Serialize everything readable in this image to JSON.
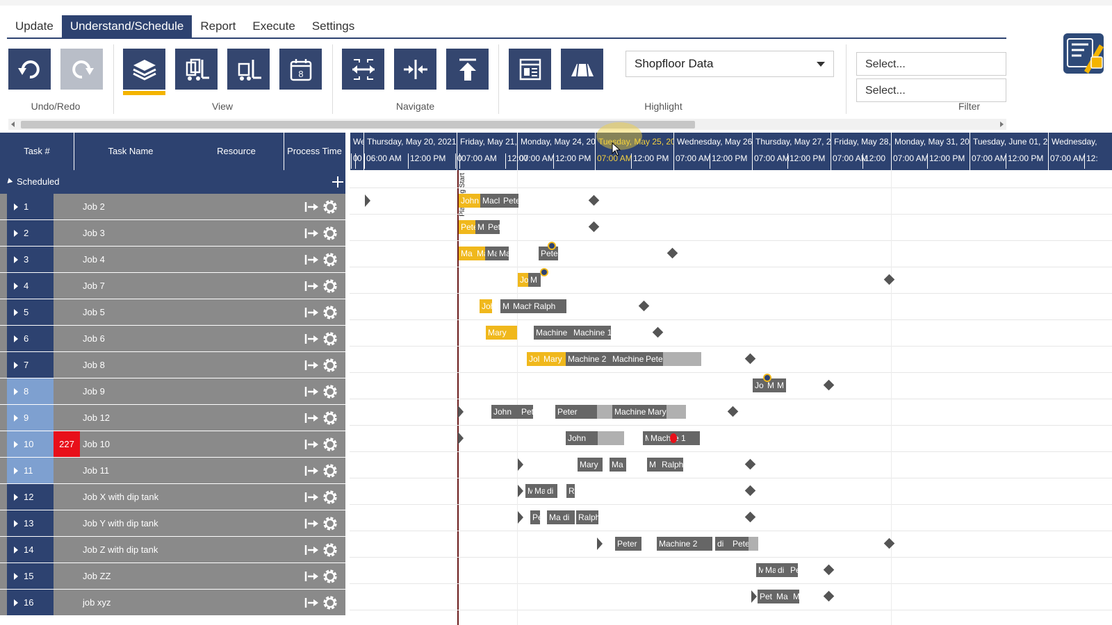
{
  "menu": {
    "tabs": [
      "Update",
      "Understand/Schedule",
      "Report",
      "Execute",
      "Settings"
    ],
    "active": "Understand/Schedule"
  },
  "ribbon": {
    "groups": {
      "undo_redo": "Undo/Redo",
      "view": "View",
      "navigate": "Navigate",
      "highlight": "Highlight",
      "filter": "Filter"
    },
    "highlight_value": "Shopfloor Data",
    "filter_placeholder_1": "Select...",
    "filter_placeholder_2": "Select...",
    "calendar_icon_number": "8"
  },
  "grid": {
    "headers": {
      "task_num": "Task #",
      "task_name": "Task Name",
      "resource": "Resource",
      "process_time": "Process Time"
    },
    "group_label": "Scheduled",
    "rows": [
      {
        "num": "1",
        "name": "Job 2",
        "style": "dark",
        "badge": ""
      },
      {
        "num": "2",
        "name": "Job 3",
        "style": "dark",
        "badge": ""
      },
      {
        "num": "3",
        "name": "Job 4",
        "style": "dark",
        "badge": ""
      },
      {
        "num": "4",
        "name": "Job 7",
        "style": "dark",
        "badge": ""
      },
      {
        "num": "5",
        "name": "Job 5",
        "style": "dark",
        "badge": ""
      },
      {
        "num": "6",
        "name": "Job 6",
        "style": "dark",
        "badge": ""
      },
      {
        "num": "7",
        "name": "Job 8",
        "style": "dark",
        "badge": ""
      },
      {
        "num": "8",
        "name": "Job 9",
        "style": "light",
        "badge": ""
      },
      {
        "num": "9",
        "name": "Job 12",
        "style": "light",
        "badge": ""
      },
      {
        "num": "10",
        "name": "Job 10",
        "style": "light",
        "badge": "227"
      },
      {
        "num": "11",
        "name": "Job 11",
        "style": "light",
        "badge": ""
      },
      {
        "num": "12",
        "name": "Job X with dip tank",
        "style": "dark",
        "badge": ""
      },
      {
        "num": "13",
        "name": "Job Y with dip tank",
        "style": "dark",
        "badge": ""
      },
      {
        "num": "14",
        "name": "Job Z with dip tank",
        "style": "dark",
        "badge": ""
      },
      {
        "num": "15",
        "name": "Job ZZ",
        "style": "dark",
        "badge": ""
      },
      {
        "num": "16",
        "name": "job xyz",
        "style": "dark",
        "badge": ""
      }
    ]
  },
  "timeline": {
    "days": [
      "We",
      "Thursday, May 20, 2021",
      "Friday, May 21,",
      "Monday, May 24, 202",
      "Tuesday, May 25, 202",
      "Wednesday, May 26,",
      "Thursday, May 27, 20",
      "Friday, May 28,",
      "Monday, May 31, 202",
      "Tuesday, June 01, 20",
      "Wednesday, "
    ],
    "highlighted_day": "Tuesday, May 25, 202",
    "times": [
      "0",
      "0",
      "06:00 AM",
      "12:00 PM",
      "0",
      "07:00 AM",
      "12:00",
      "07:00 AM",
      "12:00 PM",
      "07:00 AM",
      "12:00 PM",
      "07:00 AM",
      "12:00 PM",
      "07:00 AM",
      "12:00 PM",
      "07:00 AM",
      "12:00",
      "07:00 AM",
      "12:00 PM",
      "07:00 AM",
      "12:00 PM",
      "07:00 AM",
      "12:"
    ],
    "planning_start_label": "Planning Start",
    "colors": {
      "header": "#2d4270",
      "setup": "#f0b81c",
      "run": "#666666",
      "remaining": "#b0b0b0",
      "late": "#e8101a"
    }
  },
  "bars": {
    "r1": [
      "John",
      "Macl",
      "Pete"
    ],
    "r2": [
      "Pete",
      "M",
      "Pet"
    ],
    "r3": [
      "Ma",
      "Ma",
      "Ma",
      "Ma",
      "Pete"
    ],
    "r4": [
      "Jo",
      "M"
    ],
    "r5": [
      "Joh",
      "M",
      "Machi",
      "Ralph"
    ],
    "r6": [
      "Mary",
      "Machine",
      "Machine 1"
    ],
    "r7": [
      "Jol",
      "Mary",
      "Machine 2",
      "Machine",
      "Peter"
    ],
    "r8": [
      "Jo",
      "M",
      "M"
    ],
    "r9": [
      "John",
      "Pet",
      "Peter",
      "Machine",
      "Mary"
    ],
    "r10": [
      "John",
      "M",
      "Mach",
      "e 1"
    ],
    "r11": [
      "Mary",
      "Ma",
      "M",
      "Ralph"
    ],
    "r12": [
      "M",
      "Ma",
      "di",
      "R"
    ],
    "r13": [
      "Pe",
      "Mac",
      "di",
      "Ralph"
    ],
    "r14": [
      "Peter",
      "Machine 2",
      "di",
      "Peter"
    ],
    "r15": [
      "M",
      "Ma",
      "di",
      "Pe"
    ],
    "r16": [
      "Pet",
      "Ma",
      "Ma"
    ]
  }
}
